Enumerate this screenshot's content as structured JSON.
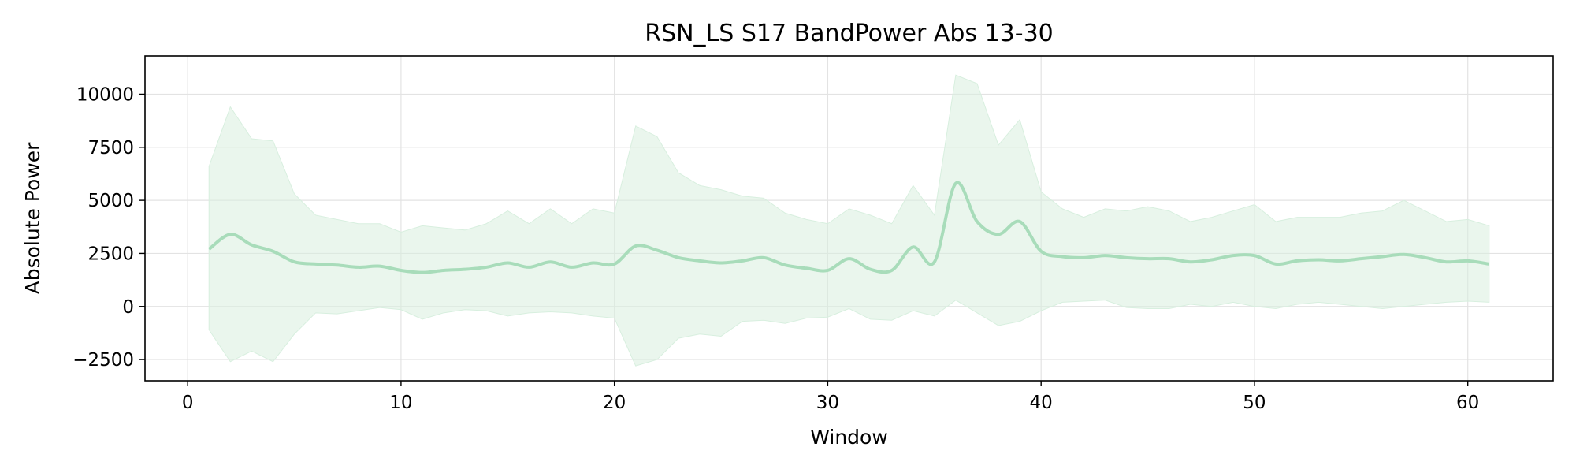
{
  "chart_data": {
    "type": "line",
    "title": "RSN_LS S17 BandPower Abs 13-30",
    "xlabel": "Window",
    "ylabel": "Absolute Power",
    "xlim": [
      -2,
      64
    ],
    "ylim": [
      -3500,
      11800
    ],
    "x_ticks": [
      0,
      10,
      20,
      30,
      40,
      50,
      60
    ],
    "y_ticks": [
      -2500,
      0,
      2500,
      5000,
      7500,
      10000
    ],
    "y_tick_labels": [
      "−2500",
      "0",
      "2500",
      "5000",
      "7500",
      "10000"
    ],
    "grid": true,
    "colors": {
      "line": "#a8dcba",
      "band": "#d8efdf"
    },
    "series": [
      {
        "x": [
          1,
          2,
          3,
          4,
          5,
          6,
          7,
          8,
          9,
          10,
          11,
          12,
          13,
          14,
          15,
          16,
          17,
          18,
          19,
          20,
          21,
          22,
          23,
          24,
          25,
          26,
          27,
          28,
          29,
          30,
          31,
          32,
          33,
          34,
          35,
          36,
          37,
          38,
          39,
          40,
          41,
          42,
          43,
          44,
          45,
          46,
          47,
          48,
          49,
          50,
          51,
          52,
          53,
          54,
          55,
          56,
          57,
          58,
          59,
          60,
          61
        ],
        "mean": [
          2700,
          3400,
          2900,
          2600,
          2100,
          2000,
          1950,
          1850,
          1900,
          1700,
          1600,
          1700,
          1750,
          1850,
          2050,
          1850,
          2100,
          1850,
          2050,
          2000,
          2850,
          2650,
          2300,
          2150,
          2050,
          2150,
          2300,
          1950,
          1800,
          1700,
          2250,
          1750,
          1700,
          2800,
          2100,
          5800,
          4000,
          3400,
          4000,
          2600,
          2350,
          2300,
          2400,
          2300,
          2250,
          2250,
          2100,
          2200,
          2400,
          2400,
          2000,
          2150,
          2200,
          2150,
          2250,
          2350,
          2450,
          2300,
          2100,
          2150,
          2000
        ],
        "upper": [
          6600,
          9400,
          7900,
          7800,
          5300,
          4300,
          4100,
          3900,
          3900,
          3500,
          3800,
          3700,
          3600,
          3900,
          4500,
          3900,
          4600,
          3900,
          4600,
          4400,
          8500,
          8000,
          6300,
          5700,
          5500,
          5200,
          5100,
          4400,
          4100,
          3900,
          4600,
          4300,
          3900,
          5700,
          4300,
          10900,
          10500,
          7600,
          8800,
          5400,
          4600,
          4200,
          4600,
          4500,
          4700,
          4500,
          4000,
          4200,
          4500,
          4800,
          4000,
          4200,
          4200,
          4200,
          4400,
          4500,
          5000,
          4500,
          4000,
          4100,
          3800
        ],
        "lower": [
          -1100,
          -2600,
          -2100,
          -2600,
          -1300,
          -300,
          -350,
          -200,
          -50,
          -150,
          -600,
          -300,
          -150,
          -200,
          -450,
          -300,
          -250,
          -300,
          -450,
          -550,
          -2800,
          -2500,
          -1500,
          -1300,
          -1400,
          -700,
          -650,
          -800,
          -550,
          -500,
          -100,
          -600,
          -650,
          -200,
          -450,
          300,
          -300,
          -900,
          -700,
          -200,
          200,
          250,
          300,
          -50,
          -100,
          -100,
          100,
          0,
          200,
          0,
          -100,
          100,
          200,
          100,
          0,
          -100,
          0,
          100,
          200,
          250,
          200
        ]
      }
    ]
  }
}
